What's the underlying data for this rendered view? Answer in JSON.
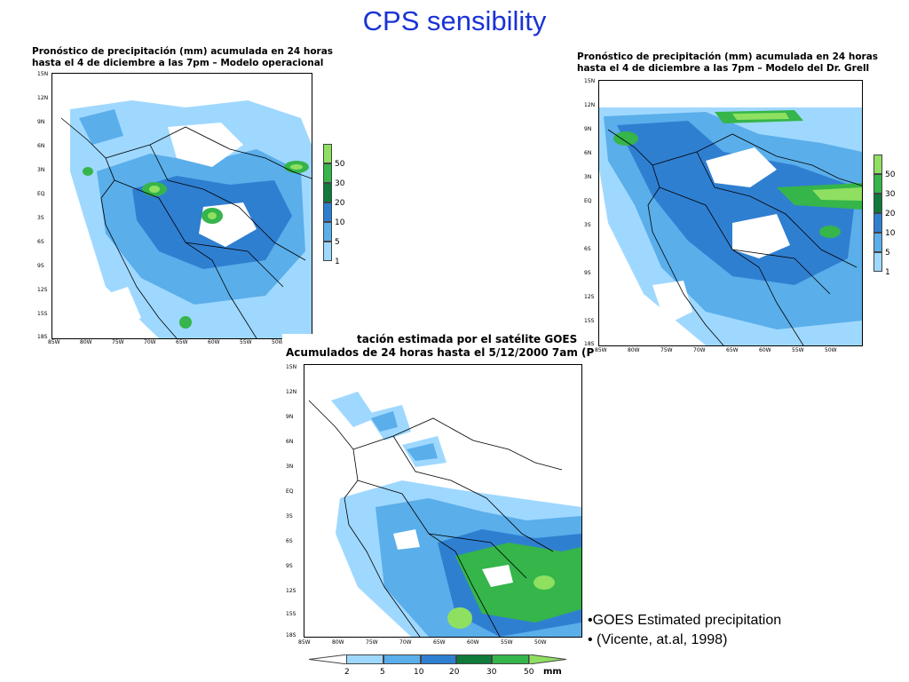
{
  "slide": {
    "title": "CPS sensibility"
  },
  "panels": {
    "operational": {
      "title_line1": "Pronóstico de precipitación (mm) acumulada en 24 horas",
      "title_line2": "hasta el 4 de diciembre a las 7pm – Modelo operacional"
    },
    "grell": {
      "title_line1": "Pronóstico de precipitación (mm) acumulada en 24 horas",
      "title_line2": "hasta el 4 de diciembre a las 7pm – Modelo del Dr. Grell"
    },
    "goes": {
      "title_line1": "tación estimada por el satélite GOES",
      "title_line2": "Acumulados de 24 horas hasta el 5/12/2000 7am (P"
    }
  },
  "axes": {
    "lat_labels": [
      "15N",
      "12N",
      "9N",
      "6N",
      "3N",
      "EQ",
      "3S",
      "6S",
      "9S",
      "12S",
      "15S",
      "18S"
    ],
    "lon_labels": [
      "85W",
      "80W",
      "75W",
      "70W",
      "65W",
      "60W",
      "55W",
      "50W"
    ]
  },
  "legends": {
    "model_levels": [
      "50",
      "30",
      "20",
      "10",
      "5",
      "1"
    ],
    "goes_levels": [
      "2",
      "5",
      "10",
      "20",
      "30",
      "50"
    ],
    "goes_unit": "mm",
    "colors": [
      "#9fd8ff",
      "#5aaeea",
      "#2f7fd1",
      "#0f7a3a",
      "#35b54a",
      "#8fe060"
    ]
  },
  "notes": {
    "line1": "•GOES Estimated precipitation",
    "line2": "• (Vicente, at.al, 1998)"
  }
}
